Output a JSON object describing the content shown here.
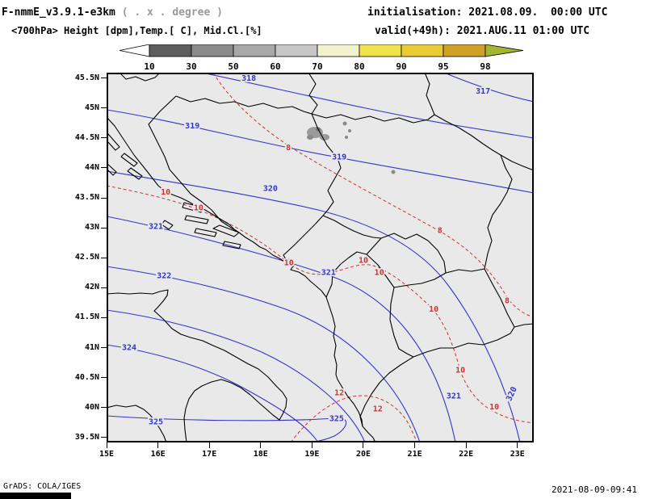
{
  "header": {
    "model_title": "F-nmmE_v3.9.1-e3km",
    "model_note": " ( . x . degree )",
    "field_title": "<700hPa> Height [dpm],Temp.[ C], Mid.Cl.[%]",
    "init_line": "initialisation: 2021.08.09.  00:00 UTC",
    "valid_line": "valid(+49h): 2021.AUG.11 01:00 UTC"
  },
  "colorbar": {
    "values": [
      10,
      30,
      50,
      60,
      70,
      80,
      90,
      95,
      98
    ],
    "colors": [
      "#ffffff",
      "#5e5e5e",
      "#8a8a8a",
      "#a8a8a8",
      "#c7c7c7",
      "#f2f2cd",
      "#f0e24a",
      "#e9cb33",
      "#cfa127",
      "#a4b531"
    ]
  },
  "footer": {
    "credit": "GrADS: COLA/IGES",
    "timestamp": "2021-08-09-09:41"
  },
  "chart_data": {
    "type": "contour-map",
    "title": "<700hPa> Height [dpm],Temp.[ C], Mid.Cl.[%]",
    "region": "Adriatic / Balkans",
    "extent": {
      "lon_min": 15.0,
      "lon_max": 23.32,
      "lat_min": 39.42,
      "lat_max": 45.59
    },
    "x_ticks": [
      {
        "label": "15E",
        "lon": 15
      },
      {
        "label": "16E",
        "lon": 16
      },
      {
        "label": "17E",
        "lon": 17
      },
      {
        "label": "18E",
        "lon": 18
      },
      {
        "label": "19E",
        "lon": 19
      },
      {
        "label": "20E",
        "lon": 20
      },
      {
        "label": "21E",
        "lon": 21
      },
      {
        "label": "22E",
        "lon": 22
      },
      {
        "label": "23E",
        "lon": 23
      }
    ],
    "y_ticks": [
      {
        "label": "45.5N",
        "lat": 45.5
      },
      {
        "label": "45N",
        "lat": 45.0
      },
      {
        "label": "44.5N",
        "lat": 44.5
      },
      {
        "label": "44N",
        "lat": 44.0
      },
      {
        "label": "43.5N",
        "lat": 43.5
      },
      {
        "label": "43N",
        "lat": 43.0
      },
      {
        "label": "42.5N",
        "lat": 42.5
      },
      {
        "label": "42N",
        "lat": 42.0
      },
      {
        "label": "41.5N",
        "lat": 41.5
      },
      {
        "label": "41N",
        "lat": 41.0
      },
      {
        "label": "40.5N",
        "lat": 40.5
      },
      {
        "label": "40N",
        "lat": 40.0
      },
      {
        "label": "39.5N",
        "lat": 39.5
      }
    ],
    "height_contours_dpm": {
      "color": "#3333cc",
      "levels": [
        {
          "value": 317,
          "labels": [
            {
              "lon": 22.33,
              "lat": 45.29
            }
          ]
        },
        {
          "value": 318,
          "labels": [
            {
              "lon": 17.77,
              "lat": 45.5
            }
          ]
        },
        {
          "value": 319,
          "labels": [
            {
              "lon": 16.67,
              "lat": 44.71
            },
            {
              "lon": 19.53,
              "lat": 44.19
            }
          ]
        },
        {
          "value": 320,
          "labels": [
            {
              "lon": 18.19,
              "lat": 43.66
            },
            {
              "lon": 22.88,
              "lat": 40.23,
              "rotate": -65
            }
          ]
        },
        {
          "value": 321,
          "labels": [
            {
              "lon": 15.96,
              "lat": 43.03
            },
            {
              "lon": 19.32,
              "lat": 42.26
            },
            {
              "lon": 21.76,
              "lat": 40.2
            }
          ]
        },
        {
          "value": 322,
          "labels": [
            {
              "lon": 16.12,
              "lat": 42.21
            }
          ]
        },
        {
          "value": 323,
          "labels": []
        },
        {
          "value": 324,
          "labels": [
            {
              "lon": 15.44,
              "lat": 41.01
            }
          ]
        },
        {
          "value": 325,
          "labels": [
            {
              "lon": 15.96,
              "lat": 39.77
            },
            {
              "lon": 19.48,
              "lat": 39.82
            }
          ]
        }
      ]
    },
    "temp_contours_c": {
      "color": "#cc3333",
      "style": "dashed",
      "levels": [
        {
          "value": 8,
          "labels": [
            {
              "lon": 18.54,
              "lat": 44.34
            },
            {
              "lon": 21.49,
              "lat": 42.96
            },
            {
              "lon": 22.8,
              "lat": 41.79
            }
          ]
        },
        {
          "value": 10,
          "labels": [
            {
              "lon": 16.15,
              "lat": 43.6
            },
            {
              "lon": 16.79,
              "lat": 43.34
            },
            {
              "lon": 18.55,
              "lat": 42.42
            },
            {
              "lon": 20.0,
              "lat": 42.46
            },
            {
              "lon": 20.31,
              "lat": 42.26
            },
            {
              "lon": 21.37,
              "lat": 41.65
            },
            {
              "lon": 21.89,
              "lat": 40.63
            },
            {
              "lon": 22.55,
              "lat": 40.02
            }
          ]
        },
        {
          "value": 12,
          "labels": [
            {
              "lon": 19.53,
              "lat": 40.25
            },
            {
              "lon": 20.28,
              "lat": 39.98
            }
          ]
        }
      ]
    },
    "cloud_cover_pct": {
      "shading_levels": [
        10,
        30,
        50,
        60,
        70,
        80,
        90,
        95,
        98
      ]
    }
  }
}
